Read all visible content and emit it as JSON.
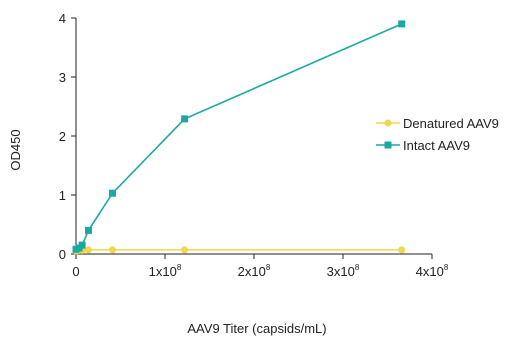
{
  "chart_data": {
    "type": "line",
    "xlabel": "AAV9 Titer (capsids/mL)",
    "ylabel": "OD450",
    "xlim": [
      0,
      400000000
    ],
    "ylim": [
      0,
      4
    ],
    "x_ticks": [
      {
        "value": 0,
        "base": "0",
        "exp": ""
      },
      {
        "value": 100000000,
        "base": "1x10",
        "exp": "8"
      },
      {
        "value": 200000000,
        "base": "2x10",
        "exp": "8"
      },
      {
        "value": 300000000,
        "base": "3x10",
        "exp": "8"
      },
      {
        "value": 400000000,
        "base": "4x10",
        "exp": "8"
      }
    ],
    "y_ticks": [
      0,
      1,
      2,
      3,
      4
    ],
    "legend_position": "right",
    "series": [
      {
        "name": "Denatured AAV9",
        "marker": "circle",
        "color": "#f2d64b",
        "x": [
          0,
          3400000,
          6900000,
          14000000,
          41000000,
          122000000,
          366000000
        ],
        "y": [
          0.05,
          0.06,
          0.06,
          0.07,
          0.07,
          0.07,
          0.07
        ]
      },
      {
        "name": "Intact AAV9",
        "marker": "square",
        "color": "#1aa9a0",
        "x": [
          0,
          3400000,
          6900000,
          14000000,
          41000000,
          122000000,
          366000000
        ],
        "y": [
          0.08,
          0.1,
          0.15,
          0.4,
          1.03,
          2.29,
          3.9
        ]
      }
    ]
  }
}
